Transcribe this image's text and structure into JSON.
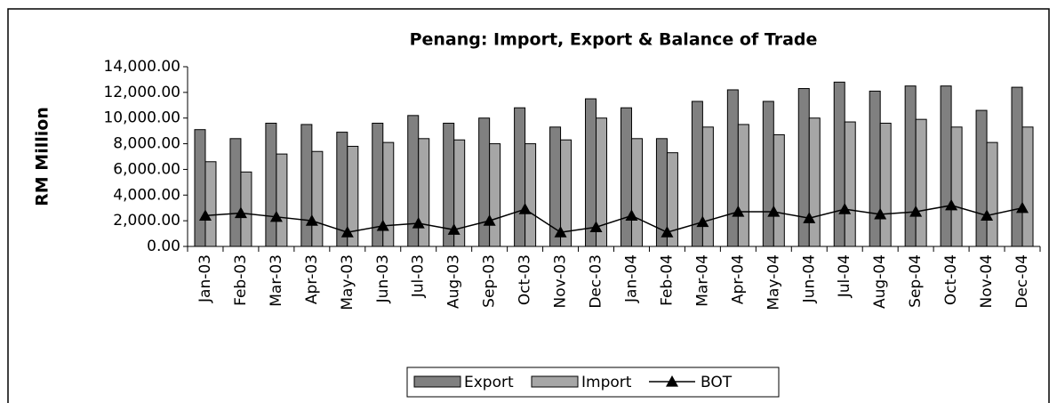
{
  "chart_data": {
    "type": "bar_line",
    "title": "Penang: Import, Export & Balance of Trade",
    "y_label": "RM Million",
    "categories": [
      "Jan-03",
      "Feb-03",
      "Mar-03",
      "Apr-03",
      "May-03",
      "Jun-03",
      "Jul-03",
      "Aug-03",
      "Sep-03",
      "Oct-03",
      "Nov-03",
      "Dec-03",
      "Jan-04",
      "Feb-04",
      "Mar-04",
      "Apr-04",
      "May-04",
      "Jun-04",
      "Jul-04",
      "Aug-04",
      "Sep-04",
      "Oct-04",
      "Nov-04",
      "Dec-04"
    ],
    "series": [
      {
        "name": "Export",
        "type": "bar",
        "color": "#808080",
        "values": [
          9100,
          8400,
          9600,
          9500,
          8900,
          9600,
          10200,
          9600,
          10000,
          10800,
          9300,
          11500,
          10800,
          8400,
          11300,
          12200,
          11300,
          12300,
          12800,
          12100,
          12500,
          12500,
          10600,
          12400
        ]
      },
      {
        "name": "Import",
        "type": "bar",
        "color": "#a6a6a6",
        "values": [
          6600,
          5800,
          7200,
          7400,
          7800,
          8100,
          8400,
          8300,
          8000,
          8000,
          8300,
          10000,
          8400,
          7300,
          9300,
          9500,
          8700,
          10000,
          9700,
          9600,
          9900,
          9300,
          8100,
          9300
        ]
      },
      {
        "name": "BOT",
        "type": "line",
        "color": "#000000",
        "values": [
          2400,
          2600,
          2300,
          2000,
          1100,
          1600,
          1800,
          1300,
          2000,
          2900,
          1100,
          1500,
          2400,
          1100,
          1900,
          2700,
          2700,
          2200,
          2900,
          2500,
          2700,
          3200,
          2400,
          3000
        ]
      }
    ],
    "ylim": [
      0,
      14000
    ],
    "yticks": [
      {
        "value": 0,
        "label": "0.00"
      },
      {
        "value": 2000,
        "label": "2,000.00"
      },
      {
        "value": 4000,
        "label": "4,000.00"
      },
      {
        "value": 6000,
        "label": "6,000.00"
      },
      {
        "value": 8000,
        "label": "8,000.00"
      },
      {
        "value": 10000,
        "label": "10,000.00"
      },
      {
        "value": 12000,
        "label": "12,000.00"
      },
      {
        "value": 14000,
        "label": "14,000.00"
      }
    ],
    "grid": false,
    "legend": "bottom"
  }
}
